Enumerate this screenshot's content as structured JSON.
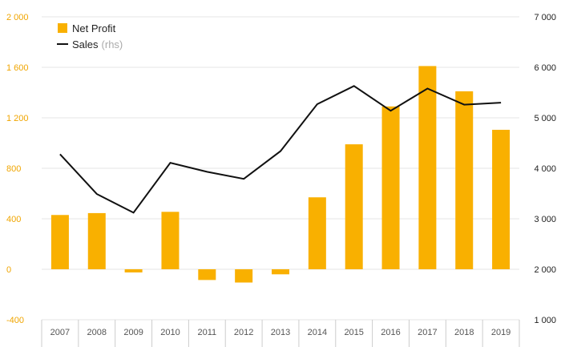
{
  "chart_data": {
    "type": "bar",
    "categories": [
      "2007",
      "2008",
      "2009",
      "2010",
      "2011",
      "2012",
      "2013",
      "2014",
      "2015",
      "2016",
      "2017",
      "2018",
      "2019"
    ],
    "series": [
      {
        "name": "Net Profit",
        "type": "bar",
        "axis": "left",
        "color": "#f9b000",
        "values": [
          430,
          445,
          -25,
          455,
          -85,
          -105,
          -40,
          570,
          990,
          1290,
          1610,
          1410,
          1105
        ]
      },
      {
        "name": "Sales",
        "name_note": "(rhs)",
        "type": "line",
        "axis": "right",
        "color": "#111111",
        "values": [
          4280,
          3490,
          3120,
          4110,
          3930,
          3790,
          4340,
          5270,
          5630,
          5140,
          5580,
          5260,
          5300
        ]
      }
    ],
    "y_left": {
      "ylim": [
        -400,
        2000
      ],
      "ticks": [
        -400,
        0,
        400,
        800,
        1200,
        1600,
        2000
      ],
      "tick_labels": [
        "-400",
        "0",
        "400",
        "800",
        "1 200",
        "1 600",
        "2 000"
      ],
      "color": "#f0a500"
    },
    "y_right": {
      "ylim": [
        1000,
        7000
      ],
      "ticks": [
        1000,
        2000,
        3000,
        4000,
        5000,
        6000,
        7000
      ],
      "tick_labels": [
        "1 000",
        "2 000",
        "3 000",
        "4 000",
        "5 000",
        "6 000",
        "7 000"
      ],
      "color": "#222222"
    },
    "grid": true,
    "legend": "top-left"
  }
}
